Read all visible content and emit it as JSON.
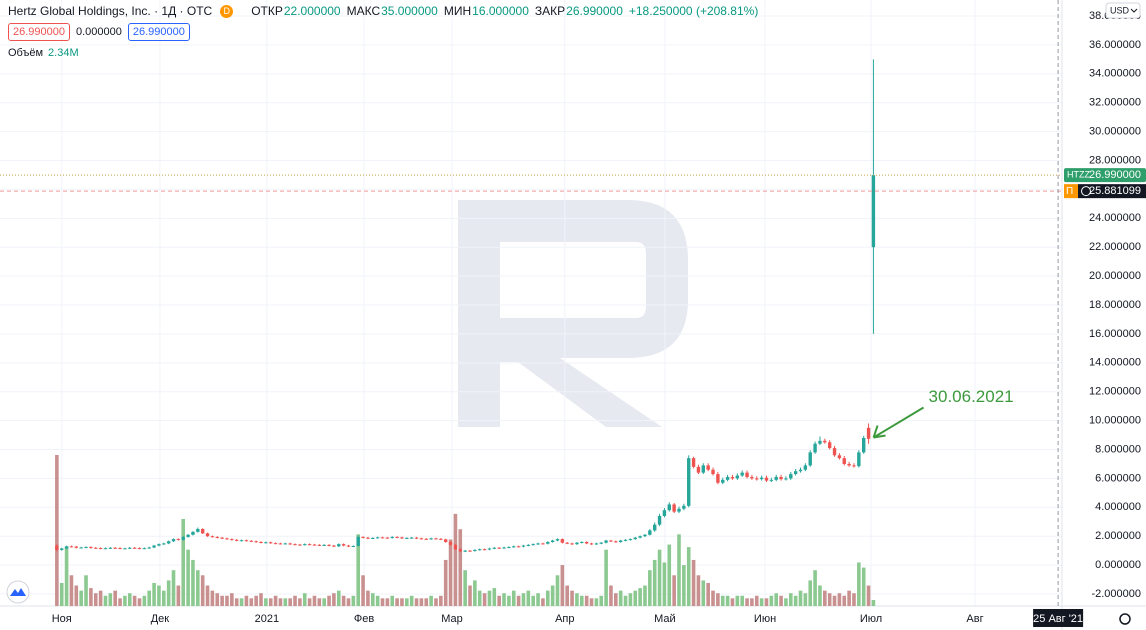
{
  "header": {
    "title": "Hertz Global Holdings, Inc. · 1Д · OTC",
    "icon": "D",
    "open_label": "ОТКР",
    "open": "22.000000",
    "high_label": "МАКС",
    "high": "35.000000",
    "low_label": "МИН",
    "low": "16.000000",
    "close_label": "ЗАКР",
    "close": "26.990000",
    "change": "+18.250000 (+208.81%)",
    "sell": "26.990000",
    "spread": "0.000000",
    "buy": "26.990000"
  },
  "currency": "USD",
  "chart_data": {
    "type": "candlestick",
    "grid": true,
    "up_color": "#26a69a",
    "down_color": "#ef5350",
    "ylim": [
      -2.83,
      39.11
    ],
    "yticks": [
      {
        "value": -2,
        "label": "-2.000000"
      },
      {
        "value": 0,
        "label": "0.000000"
      },
      {
        "value": 2,
        "label": "2.000000"
      },
      {
        "value": 4,
        "label": "4.000000"
      },
      {
        "value": 6,
        "label": "6.000000"
      },
      {
        "value": 8,
        "label": "8.000000"
      },
      {
        "value": 10,
        "label": "10.000000"
      },
      {
        "value": 12,
        "label": "12.000000"
      },
      {
        "value": 14,
        "label": "14.000000"
      },
      {
        "value": 16,
        "label": "16.000000"
      },
      {
        "value": 18,
        "label": "18.000000"
      },
      {
        "value": 20,
        "label": "20.000000"
      },
      {
        "value": 22,
        "label": "22.000000"
      },
      {
        "value": 24,
        "label": "24.000000"
      },
      {
        "value": 26,
        "label": "26.000000"
      },
      {
        "value": 28,
        "label": "28.000000"
      },
      {
        "value": 30,
        "label": "30.000000"
      },
      {
        "value": 32,
        "label": "32.000000"
      },
      {
        "value": 34,
        "label": "34.000000"
      },
      {
        "value": 36,
        "label": "36.000000"
      },
      {
        "value": 38,
        "label": "38.000000"
      }
    ],
    "xlim": [
      -11.7,
      206.8
    ],
    "xticks": [
      {
        "value": 1,
        "label": "Ноя"
      },
      {
        "value": 21.2,
        "label": "Дек"
      },
      {
        "value": 43.2,
        "label": "2021"
      },
      {
        "value": 63.2,
        "label": "Фев"
      },
      {
        "value": 81.3,
        "label": "Мар"
      },
      {
        "value": 104.5,
        "label": "Апр"
      },
      {
        "value": 125.1,
        "label": "Май"
      },
      {
        "value": 145.7,
        "label": "Июн"
      },
      {
        "value": 167.5,
        "label": "Июл"
      },
      {
        "value": 188.9,
        "label": "Авг"
      }
    ],
    "open": [
      1.35,
      1.05,
      1.15,
      1.3,
      1.28,
      1.2,
      1.22,
      1.25,
      1.2,
      1.18,
      1.15,
      1.17,
      1.2,
      1.18,
      1.15,
      1.16,
      1.2,
      1.18,
      1.15,
      1.17,
      1.22,
      1.35,
      1.45,
      1.5,
      1.65,
      1.8,
      1.75,
      1.95,
      2.1,
      2.3,
      2.5,
      2.2,
      2.0,
      1.95,
      1.9,
      1.85,
      1.8,
      1.75,
      1.7,
      1.72,
      1.68,
      1.65,
      1.6,
      1.55,
      1.58,
      1.52,
      1.5,
      1.48,
      1.5,
      1.45,
      1.42,
      1.4,
      1.45,
      1.42,
      1.4,
      1.38,
      1.4,
      1.35,
      1.3,
      1.45,
      1.35,
      1.3,
      1.32,
      1.95,
      1.9,
      1.85,
      1.88,
      1.92,
      1.9,
      1.88,
      1.95,
      1.92,
      1.85,
      1.88,
      1.9,
      1.85,
      1.82,
      1.8,
      1.85,
      1.82,
      1.78,
      1.6,
      1.4,
      1.1,
      0.95,
      1.0,
      0.98,
      1.05,
      1.1,
      1.08,
      1.15,
      1.2,
      1.18,
      1.22,
      1.25,
      1.3,
      1.28,
      1.35,
      1.4,
      1.45,
      1.5,
      1.48,
      1.6,
      1.7,
      1.8,
      1.55,
      1.5,
      1.45,
      1.55,
      1.6,
      1.5,
      1.45,
      1.5,
      1.55,
      1.7,
      1.65,
      1.6,
      1.7,
      1.75,
      1.8,
      1.9,
      2.0,
      2.1,
      2.4,
      2.8,
      3.4,
      3.8,
      4.2,
      3.7,
      3.9,
      4.1,
      7.4,
      6.8,
      6.4,
      6.9,
      6.6,
      6.3,
      5.7,
      5.9,
      6.1,
      6.0,
      6.2,
      6.4,
      6.1,
      6.0,
      5.95,
      6.05,
      5.85,
      5.9,
      6.1,
      5.95,
      6.0,
      6.3,
      6.5,
      6.6,
      6.9,
      7.8,
      8.4,
      8.6,
      8.5,
      8.1,
      7.6,
      7.4,
      7.0,
      6.9,
      6.85,
      7.8,
      9.5,
      22.0
    ],
    "high": [
      1.45,
      1.2,
      1.35,
      1.35,
      1.33,
      1.27,
      1.3,
      1.3,
      1.25,
      1.23,
      1.22,
      1.25,
      1.25,
      1.23,
      1.21,
      1.25,
      1.25,
      1.23,
      1.22,
      1.27,
      1.4,
      1.5,
      1.55,
      1.7,
      1.85,
      1.85,
      2.0,
      2.15,
      2.35,
      2.6,
      2.55,
      2.25,
      2.05,
      2.0,
      1.95,
      1.9,
      1.85,
      1.8,
      1.77,
      1.77,
      1.73,
      1.7,
      1.65,
      1.63,
      1.63,
      1.57,
      1.55,
      1.55,
      1.55,
      1.5,
      1.47,
      1.5,
      1.5,
      1.47,
      1.45,
      1.45,
      1.45,
      1.4,
      1.5,
      1.5,
      1.4,
      1.37,
      2.05,
      2.0,
      1.95,
      1.93,
      1.97,
      1.97,
      1.95,
      2.0,
      2.0,
      1.97,
      1.93,
      1.95,
      1.95,
      1.9,
      1.87,
      1.9,
      1.9,
      1.87,
      1.83,
      1.65,
      1.45,
      1.15,
      1.05,
      1.05,
      1.1,
      1.15,
      1.15,
      1.2,
      1.25,
      1.25,
      1.27,
      1.3,
      1.35,
      1.35,
      1.4,
      1.45,
      1.5,
      1.55,
      1.55,
      1.65,
      1.75,
      1.85,
      1.85,
      1.6,
      1.55,
      1.6,
      1.65,
      1.65,
      1.55,
      1.55,
      1.6,
      1.75,
      1.75,
      1.7,
      1.75,
      1.8,
      1.85,
      1.95,
      2.05,
      2.15,
      2.5,
      2.95,
      3.55,
      3.95,
      4.35,
      4.3,
      4.05,
      4.25,
      7.6,
      7.5,
      6.95,
      7.05,
      7.05,
      6.75,
      6.45,
      6.05,
      6.25,
      6.25,
      6.35,
      6.55,
      6.55,
      6.25,
      6.15,
      6.2,
      6.2,
      6.05,
      6.25,
      6.25,
      6.15,
      6.45,
      6.65,
      6.75,
      7.05,
      7.95,
      8.55,
      8.9,
      8.75,
      8.65,
      8.25,
      7.75,
      7.55,
      7.15,
      7.05,
      7.95,
      8.95,
      9.8,
      35.0
    ],
    "low": [
      0.95,
      1.0,
      1.1,
      1.23,
      1.15,
      1.15,
      1.17,
      1.15,
      1.13,
      1.1,
      1.1,
      1.12,
      1.13,
      1.1,
      1.1,
      1.11,
      1.13,
      1.1,
      1.1,
      1.12,
      1.17,
      1.3,
      1.4,
      1.45,
      1.6,
      1.7,
      1.7,
      1.9,
      2.05,
      2.25,
      2.15,
      1.95,
      1.9,
      1.85,
      1.8,
      1.75,
      1.7,
      1.65,
      1.65,
      1.63,
      1.6,
      1.55,
      1.5,
      1.5,
      1.47,
      1.45,
      1.43,
      1.43,
      1.4,
      1.37,
      1.35,
      1.35,
      1.37,
      1.35,
      1.33,
      1.33,
      1.3,
      1.25,
      1.25,
      1.3,
      1.25,
      1.25,
      1.3,
      1.85,
      1.8,
      1.8,
      1.83,
      1.85,
      1.83,
      1.83,
      1.87,
      1.8,
      1.8,
      1.83,
      1.8,
      1.77,
      1.75,
      1.75,
      1.77,
      1.73,
      1.55,
      1.35,
      1.05,
      0.9,
      0.9,
      0.93,
      0.93,
      1.0,
      1.03,
      1.03,
      1.1,
      1.13,
      1.13,
      1.17,
      1.2,
      1.23,
      1.23,
      1.3,
      1.35,
      1.4,
      1.43,
      1.43,
      1.55,
      1.65,
      1.5,
      1.45,
      1.4,
      1.4,
      1.5,
      1.45,
      1.4,
      1.4,
      1.45,
      1.5,
      1.6,
      1.55,
      1.55,
      1.65,
      1.7,
      1.75,
      1.85,
      1.95,
      2.05,
      2.3,
      2.7,
      3.3,
      3.7,
      3.6,
      3.6,
      3.8,
      4.0,
      6.7,
      6.3,
      6.3,
      6.5,
      6.2,
      5.6,
      5.6,
      5.8,
      5.9,
      5.9,
      6.1,
      6.0,
      5.9,
      5.85,
      5.85,
      5.75,
      5.75,
      5.8,
      5.85,
      5.85,
      5.9,
      6.2,
      6.4,
      6.5,
      6.8,
      7.7,
      8.3,
      8.4,
      8.0,
      7.5,
      7.3,
      6.9,
      6.8,
      6.75,
      6.75,
      7.7,
      8.4,
      16.0
    ],
    "close": [
      1.05,
      1.15,
      1.3,
      1.28,
      1.2,
      1.22,
      1.25,
      1.2,
      1.18,
      1.15,
      1.17,
      1.2,
      1.18,
      1.15,
      1.16,
      1.2,
      1.18,
      1.15,
      1.17,
      1.22,
      1.35,
      1.45,
      1.5,
      1.65,
      1.8,
      1.75,
      1.95,
      2.1,
      2.3,
      2.5,
      2.2,
      2.0,
      1.95,
      1.9,
      1.85,
      1.8,
      1.75,
      1.7,
      1.72,
      1.68,
      1.65,
      1.6,
      1.55,
      1.58,
      1.52,
      1.5,
      1.48,
      1.5,
      1.45,
      1.42,
      1.4,
      1.45,
      1.42,
      1.4,
      1.38,
      1.4,
      1.35,
      1.3,
      1.45,
      1.35,
      1.3,
      1.32,
      1.95,
      1.9,
      1.85,
      1.88,
      1.92,
      1.9,
      1.88,
      1.95,
      1.92,
      1.85,
      1.88,
      1.9,
      1.85,
      1.82,
      1.8,
      1.85,
      1.82,
      1.78,
      1.6,
      1.4,
      1.1,
      0.95,
      1.0,
      0.98,
      1.05,
      1.1,
      1.08,
      1.15,
      1.2,
      1.18,
      1.22,
      1.25,
      1.3,
      1.28,
      1.35,
      1.4,
      1.45,
      1.5,
      1.48,
      1.6,
      1.7,
      1.8,
      1.55,
      1.5,
      1.45,
      1.55,
      1.6,
      1.5,
      1.45,
      1.5,
      1.55,
      1.7,
      1.65,
      1.6,
      1.7,
      1.75,
      1.8,
      1.9,
      2.0,
      2.1,
      2.4,
      2.8,
      3.4,
      3.8,
      4.2,
      3.7,
      3.9,
      4.1,
      7.4,
      6.8,
      6.4,
      6.9,
      6.6,
      6.3,
      5.7,
      5.9,
      6.1,
      6.0,
      6.2,
      6.4,
      6.1,
      6.0,
      5.95,
      6.05,
      5.85,
      5.9,
      6.1,
      5.95,
      6.0,
      6.3,
      6.5,
      6.6,
      6.9,
      7.8,
      8.4,
      8.6,
      8.5,
      8.1,
      7.6,
      7.4,
      7.0,
      6.9,
      6.85,
      7.8,
      8.8,
      8.74,
      26.99
    ],
    "volume": {
      "name": "Объём",
      "last_label": "2.34M",
      "up_color": "#8cc991",
      "down_color": "#c99090",
      "values": [
        59,
        9,
        23,
        12,
        8,
        6,
        12,
        7,
        5,
        6,
        4,
        5,
        6,
        3,
        4,
        5,
        4,
        3,
        4,
        6,
        9,
        8,
        6,
        10,
        14,
        8,
        34,
        22,
        18,
        14,
        12,
        8,
        6,
        5,
        4,
        4,
        5,
        3,
        3,
        4,
        3,
        4,
        5,
        3,
        3,
        4,
        3,
        3,
        3,
        4,
        3,
        5,
        3,
        4,
        3,
        3,
        4,
        5,
        6,
        4,
        3,
        4,
        28,
        12,
        6,
        5,
        4,
        3,
        3,
        4,
        3,
        3,
        3,
        4,
        3,
        3,
        3,
        4,
        3,
        4,
        18,
        26,
        36,
        30,
        14,
        8,
        10,
        6,
        5,
        6,
        7,
        4,
        5,
        4,
        6,
        4,
        5,
        6,
        4,
        5,
        3,
        6,
        8,
        12,
        16,
        8,
        6,
        5,
        4,
        4,
        3,
        3,
        4,
        22,
        8,
        5,
        6,
        4,
        5,
        6,
        7,
        8,
        14,
        18,
        22,
        17,
        24,
        12,
        28,
        16,
        23,
        18,
        12,
        10,
        9,
        6,
        5,
        4,
        4,
        3,
        4,
        4,
        3,
        3,
        4,
        3,
        3,
        4,
        5,
        4,
        3,
        5,
        4,
        6,
        5,
        10,
        14,
        8,
        6,
        5,
        4,
        5,
        4,
        6,
        5,
        17,
        15,
        8,
        2.34
      ]
    },
    "price_tag": {
      "label": "HTZZ",
      "text": "26.990000",
      "color": "#2e9e6b"
    },
    "avg_line": {
      "label": "П",
      "value": 25.881099,
      "color": "#ff9800"
    },
    "crosshair": {
      "x": 206,
      "label": "25 Авг '21"
    },
    "annotation": {
      "text": "30.06.2021",
      "x": 167,
      "color": "#3c9a3c"
    }
  }
}
